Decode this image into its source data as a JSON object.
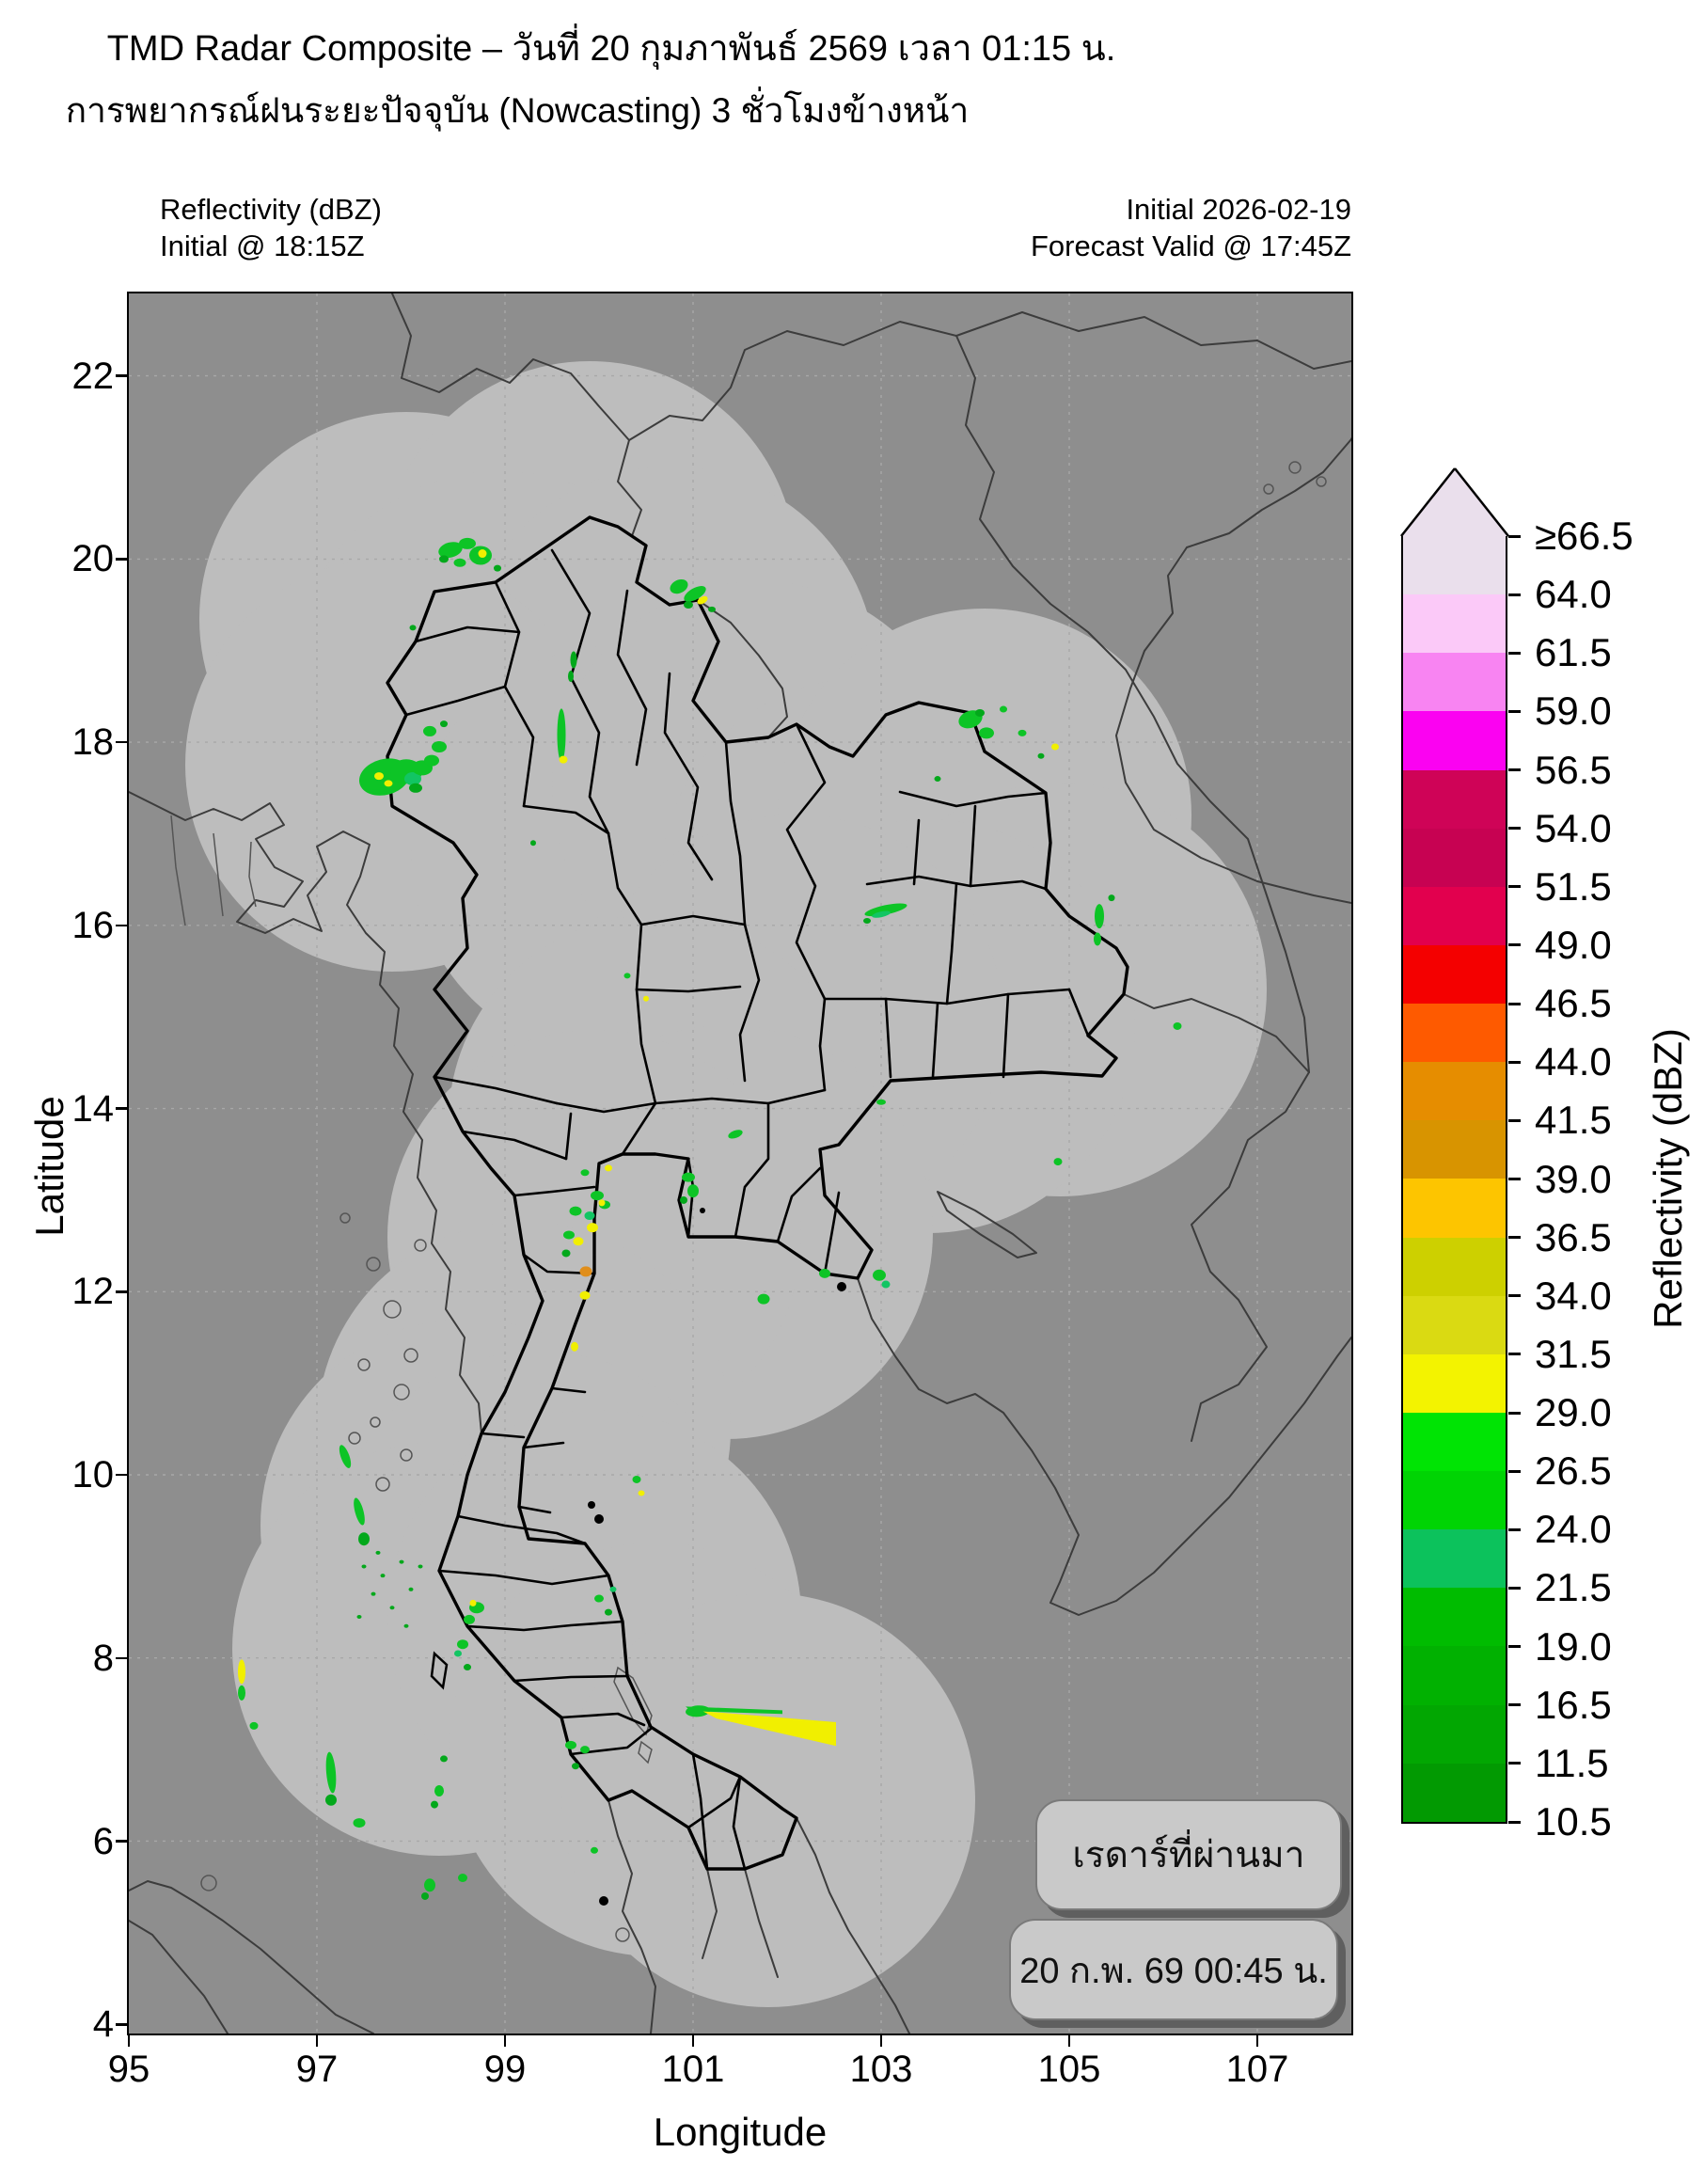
{
  "header": {
    "title": "TMD Radar Composite – วันที่ 20 กุมภาพันธ์ 2569 เวลา 01:15 น.",
    "subtitle": "การพยากรณ์ฝนระยะปัจจุบัน (Nowcasting) 3 ชั่วโมงข้างหน้า",
    "left_line1": "Reflectivity (dBZ)",
    "left_line2": "Initial @ 18:15Z",
    "right_line1": "Initial 2026-02-19",
    "right_line2": "Forecast Valid @ 17:45Z"
  },
  "map": {
    "xlabel": "Longitude",
    "ylabel": "Latitude",
    "lon_ticks": [
      95,
      97,
      99,
      101,
      103,
      105,
      107
    ],
    "lat_ticks": [
      4,
      6,
      8,
      10,
      12,
      14,
      16,
      18,
      20,
      22
    ],
    "lon_range": [
      95,
      108
    ],
    "lat_range": [
      4,
      22.9
    ],
    "badge1": "เรดาร์ที่ผ่านมา",
    "badge2": "20 ก.พ. 69 00:45 น.",
    "colors": {
      "outside_coverage": "#8e8e8e",
      "coverage": "#bdbdbd",
      "province_line": "#000000",
      "neighbor_line": "#3c3c3c",
      "grid_line": "#a8a8a8"
    },
    "echo_palette": {
      "G": "#0dc426",
      "G2": "#03a81b",
      "T": "#12c563",
      "Y": "#f1ef00",
      "O": "#e08e1b"
    },
    "echoes": [
      [
        98.42,
        20.1,
        26,
        16,
        -15,
        "G"
      ],
      [
        98.6,
        20.17,
        18,
        12,
        0,
        "G"
      ],
      [
        98.74,
        20.04,
        24,
        20,
        0,
        "G"
      ],
      [
        98.76,
        20.06,
        9,
        9,
        0,
        "Y"
      ],
      [
        98.52,
        19.96,
        13,
        9,
        0,
        "G"
      ],
      [
        98.35,
        20.0,
        10,
        8,
        0,
        "G2"
      ],
      [
        98.92,
        19.9,
        8,
        7,
        0,
        "G2"
      ],
      [
        98.02,
        19.25,
        7,
        6,
        0,
        "G2"
      ],
      [
        100.85,
        19.7,
        20,
        14,
        -25,
        "G"
      ],
      [
        101.02,
        19.62,
        26,
        12,
        -30,
        "G"
      ],
      [
        101.1,
        19.55,
        12,
        7,
        -30,
        "Y"
      ],
      [
        100.95,
        19.5,
        10,
        8,
        0,
        "G2"
      ],
      [
        101.2,
        19.45,
        8,
        6,
        0,
        "G2"
      ],
      [
        97.72,
        17.62,
        55,
        38,
        -15,
        "G"
      ],
      [
        97.62,
        17.55,
        20,
        14,
        0,
        "G"
      ],
      [
        97.66,
        17.63,
        10,
        8,
        0,
        "Y"
      ],
      [
        97.76,
        17.55,
        9,
        7,
        0,
        "Y"
      ],
      [
        97.95,
        17.68,
        34,
        26,
        0,
        "G"
      ],
      [
        98.02,
        17.6,
        18,
        14,
        0,
        "T"
      ],
      [
        98.12,
        17.72,
        22,
        16,
        0,
        "G"
      ],
      [
        98.22,
        17.8,
        16,
        12,
        0,
        "G"
      ],
      [
        98.05,
        17.5,
        14,
        10,
        0,
        "G2"
      ],
      [
        98.3,
        17.95,
        16,
        12,
        0,
        "G"
      ],
      [
        98.2,
        18.12,
        14,
        11,
        0,
        "G"
      ],
      [
        98.35,
        18.2,
        8,
        7,
        0,
        "G2"
      ],
      [
        99.6,
        18.08,
        9,
        56,
        0,
        "G"
      ],
      [
        99.62,
        17.81,
        9,
        8,
        0,
        "Y"
      ],
      [
        99.73,
        18.9,
        7,
        18,
        0,
        "G2"
      ],
      [
        99.7,
        18.72,
        6,
        12,
        0,
        "G2"
      ],
      [
        103.95,
        18.25,
        26,
        18,
        -20,
        "G"
      ],
      [
        104.12,
        18.1,
        16,
        12,
        0,
        "G"
      ],
      [
        104.05,
        18.32,
        10,
        8,
        0,
        "G2"
      ],
      [
        104.3,
        18.36,
        8,
        7,
        0,
        "G"
      ],
      [
        104.5,
        18.1,
        9,
        7,
        0,
        "G"
      ],
      [
        104.85,
        17.95,
        8,
        7,
        0,
        "Y"
      ],
      [
        104.7,
        17.85,
        7,
        6,
        0,
        "G2"
      ],
      [
        103.6,
        17.6,
        7,
        6,
        0,
        "G2"
      ],
      [
        103.05,
        16.17,
        46,
        10,
        -12,
        "G"
      ],
      [
        103.0,
        16.12,
        20,
        6,
        -12,
        "T"
      ],
      [
        102.85,
        16.05,
        8,
        6,
        0,
        "G2"
      ],
      [
        105.32,
        16.1,
        10,
        26,
        0,
        "G"
      ],
      [
        105.3,
        15.85,
        8,
        14,
        0,
        "G"
      ],
      [
        105.45,
        16.3,
        7,
        7,
        0,
        "G2"
      ],
      [
        106.15,
        14.9,
        9,
        8,
        0,
        "G"
      ],
      [
        104.88,
        13.42,
        9,
        8,
        0,
        "G"
      ],
      [
        103.0,
        14.07,
        10,
        6,
        0,
        "G"
      ],
      [
        99.98,
        13.05,
        14,
        10,
        0,
        "G"
      ],
      [
        100.06,
        12.95,
        12,
        9,
        0,
        "G"
      ],
      [
        100.03,
        12.97,
        7,
        7,
        0,
        "Y"
      ],
      [
        99.9,
        12.83,
        11,
        9,
        0,
        "T"
      ],
      [
        99.93,
        12.7,
        12,
        10,
        0,
        "Y"
      ],
      [
        99.75,
        12.88,
        13,
        10,
        0,
        "G"
      ],
      [
        99.68,
        12.62,
        12,
        9,
        0,
        "G"
      ],
      [
        99.78,
        12.55,
        11,
        9,
        0,
        "Y"
      ],
      [
        99.86,
        12.22,
        13,
        11,
        0,
        "O"
      ],
      [
        99.85,
        11.96,
        11,
        9,
        0,
        "Y"
      ],
      [
        99.74,
        11.4,
        8,
        10,
        0,
        "Y"
      ],
      [
        99.65,
        12.42,
        9,
        8,
        0,
        "G2"
      ],
      [
        100.1,
        13.35,
        8,
        7,
        0,
        "Y"
      ],
      [
        99.85,
        13.3,
        9,
        7,
        0,
        "G"
      ],
      [
        100.95,
        13.25,
        14,
        10,
        0,
        "G"
      ],
      [
        101.0,
        13.1,
        12,
        14,
        0,
        "G"
      ],
      [
        100.9,
        13.0,
        8,
        8,
        0,
        "G2"
      ],
      [
        101.45,
        13.72,
        16,
        8,
        -20,
        "G"
      ],
      [
        101.75,
        11.92,
        13,
        11,
        0,
        "G"
      ],
      [
        102.4,
        12.2,
        12,
        10,
        0,
        "G"
      ],
      [
        102.98,
        12.18,
        14,
        12,
        0,
        "G"
      ],
      [
        103.05,
        12.08,
        9,
        8,
        0,
        "T"
      ],
      [
        97.3,
        10.2,
        9,
        26,
        -20,
        "G"
      ],
      [
        97.45,
        9.6,
        9,
        30,
        -15,
        "G"
      ],
      [
        97.5,
        9.3,
        12,
        14,
        0,
        "G2"
      ],
      [
        97.15,
        6.75,
        10,
        44,
        -5,
        "G"
      ],
      [
        97.15,
        6.45,
        12,
        12,
        0,
        "G2"
      ],
      [
        97.45,
        6.2,
        13,
        10,
        0,
        "G"
      ],
      [
        96.2,
        7.85,
        8,
        26,
        0,
        "Y"
      ],
      [
        96.2,
        7.62,
        8,
        16,
        0,
        "G"
      ],
      [
        96.33,
        7.26,
        9,
        8,
        0,
        "G"
      ],
      [
        98.7,
        8.55,
        16,
        12,
        0,
        "G"
      ],
      [
        98.62,
        8.42,
        12,
        10,
        0,
        "G"
      ],
      [
        98.66,
        8.6,
        7,
        7,
        0,
        "Y"
      ],
      [
        98.55,
        8.15,
        12,
        10,
        0,
        "G"
      ],
      [
        98.5,
        8.05,
        8,
        7,
        0,
        "T"
      ],
      [
        98.6,
        7.9,
        8,
        7,
        0,
        "G2"
      ],
      [
        98.35,
        6.9,
        8,
        7,
        0,
        "G2"
      ],
      [
        98.3,
        6.55,
        10,
        12,
        0,
        "G"
      ],
      [
        98.25,
        6.4,
        8,
        8,
        0,
        "G2"
      ],
      [
        97.5,
        9.0,
        5,
        4,
        0,
        "G2"
      ],
      [
        97.7,
        8.9,
        5,
        4,
        0,
        "G2"
      ],
      [
        97.9,
        9.05,
        5,
        4,
        0,
        "G2"
      ],
      [
        97.6,
        8.7,
        5,
        4,
        0,
        "G2"
      ],
      [
        97.8,
        8.55,
        5,
        4,
        0,
        "G2"
      ],
      [
        98.0,
        8.75,
        5,
        4,
        0,
        "G2"
      ],
      [
        97.45,
        8.45,
        5,
        4,
        0,
        "G2"
      ],
      [
        97.95,
        8.35,
        5,
        4,
        0,
        "G2"
      ],
      [
        98.1,
        9.0,
        5,
        4,
        0,
        "G2"
      ],
      [
        97.65,
        9.15,
        5,
        4,
        0,
        "G2"
      ],
      [
        99.7,
        7.05,
        12,
        9,
        0,
        "G"
      ],
      [
        99.85,
        7.0,
        10,
        8,
        0,
        "G"
      ],
      [
        99.75,
        6.82,
        8,
        7,
        0,
        "G2"
      ],
      [
        100.0,
        8.65,
        10,
        8,
        0,
        "G"
      ],
      [
        100.1,
        8.5,
        8,
        7,
        0,
        "G2"
      ],
      [
        100.15,
        8.75,
        7,
        6,
        0,
        "T"
      ],
      [
        100.4,
        9.95,
        9,
        8,
        0,
        "G"
      ],
      [
        100.45,
        9.8,
        7,
        6,
        0,
        "Y"
      ],
      [
        101.05,
        7.42,
        26,
        12,
        -4,
        "G"
      ],
      [
        98.2,
        5.52,
        12,
        14,
        0,
        "G"
      ],
      [
        98.55,
        5.6,
        10,
        9,
        0,
        "G"
      ],
      [
        98.15,
        5.4,
        8,
        8,
        0,
        "G2"
      ],
      [
        99.95,
        5.9,
        8,
        7,
        0,
        "G"
      ],
      [
        100.3,
        15.45,
        7,
        6,
        0,
        "G"
      ],
      [
        100.5,
        15.2,
        6,
        6,
        0,
        "Y"
      ],
      [
        99.3,
        16.9,
        6,
        6,
        0,
        "G2"
      ]
    ],
    "echo_polys": [
      {
        "pts": [
          [
            101.1,
            7.42
          ],
          [
            102.52,
            7.3
          ],
          [
            102.52,
            7.04
          ],
          [
            101.25,
            7.34
          ]
        ],
        "c": "Y"
      },
      {
        "pts": [
          [
            100.92,
            7.47
          ],
          [
            101.95,
            7.43
          ],
          [
            101.95,
            7.39
          ],
          [
            100.98,
            7.42
          ]
        ],
        "c": "G"
      }
    ]
  },
  "colorbar": {
    "label": "Reflectivity (dBZ)",
    "tick_labels": [
      "≥66.5",
      "64.0",
      "61.5",
      "59.0",
      "56.5",
      "54.0",
      "51.5",
      "49.0",
      "46.5",
      "44.0",
      "41.5",
      "39.0",
      "36.5",
      "34.0",
      "31.5",
      "29.0",
      "26.5",
      "24.0",
      "21.5",
      "19.0",
      "16.5",
      "11.5",
      "10.5"
    ],
    "band_colors_top_to_bottom": [
      "#eadfec",
      "#fbc9f8",
      "#f884f2",
      "#fb02f1",
      "#cf0357",
      "#c70252",
      "#e2004e",
      "#f40000",
      "#fe5a00",
      "#e68d00",
      "#d89400",
      "#fdc500",
      "#cdd000",
      "#dada12",
      "#f3f300",
      "#00e404",
      "#00d404",
      "#0cc25c",
      "#00bc00",
      "#01b101",
      "#02a702",
      "#029a02"
    ]
  }
}
